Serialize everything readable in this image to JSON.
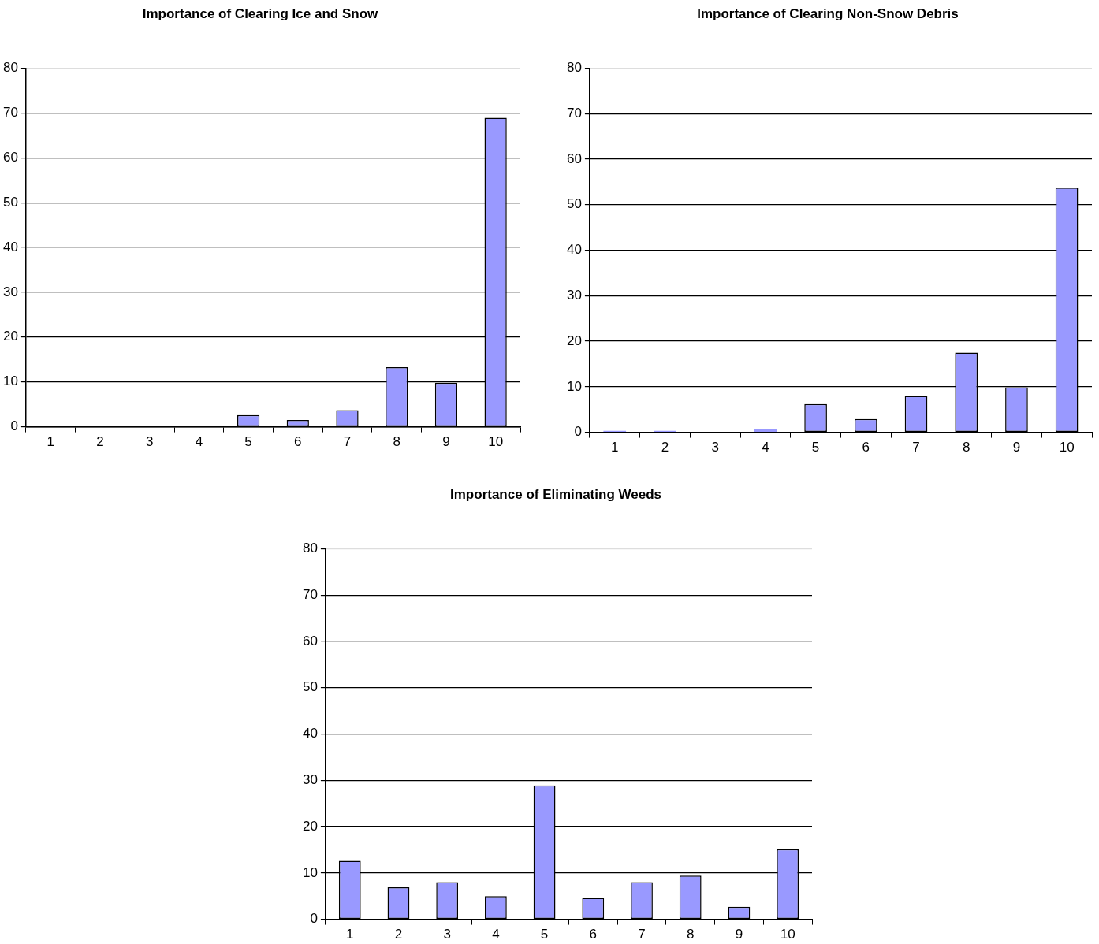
{
  "chart_data": [
    {
      "type": "bar",
      "title": "Importance of Clearing Ice and Snow",
      "categories": [
        "1",
        "2",
        "3",
        "4",
        "5",
        "6",
        "7",
        "8",
        "9",
        "10"
      ],
      "values": [
        0.3,
        0,
        0,
        0,
        2.6,
        1.5,
        3.7,
        13.3,
        9.8,
        68.9
      ],
      "color": "#9999ff",
      "ylim": [
        0,
        80
      ],
      "yticks": [
        0,
        10,
        20,
        30,
        40,
        50,
        60,
        70,
        80
      ],
      "grid": "y"
    },
    {
      "type": "bar",
      "title": "Importance of Clearing Non-Snow Debris",
      "categories": [
        "1",
        "2",
        "3",
        "4",
        "5",
        "6",
        "7",
        "8",
        "9",
        "10"
      ],
      "values": [
        0.3,
        0.3,
        0,
        0.8,
        6.2,
        2.9,
        8.0,
        17.5,
        9.9,
        53.7
      ],
      "color": "#9999ff",
      "ylim": [
        0,
        80
      ],
      "yticks": [
        0,
        10,
        20,
        30,
        40,
        50,
        60,
        70,
        80
      ],
      "grid": "y"
    },
    {
      "type": "bar",
      "title": "Importance of Eliminating Weeds",
      "categories": [
        "1",
        "2",
        "3",
        "4",
        "5",
        "6",
        "7",
        "8",
        "9",
        "10"
      ],
      "values": [
        12.6,
        6.9,
        8.0,
        5.0,
        28.9,
        4.6,
        8.0,
        9.4,
        2.7,
        15.1
      ],
      "color": "#9999ff",
      "ylim": [
        0,
        80
      ],
      "yticks": [
        0,
        10,
        20,
        30,
        40,
        50,
        60,
        70,
        80
      ],
      "grid": "y"
    }
  ]
}
